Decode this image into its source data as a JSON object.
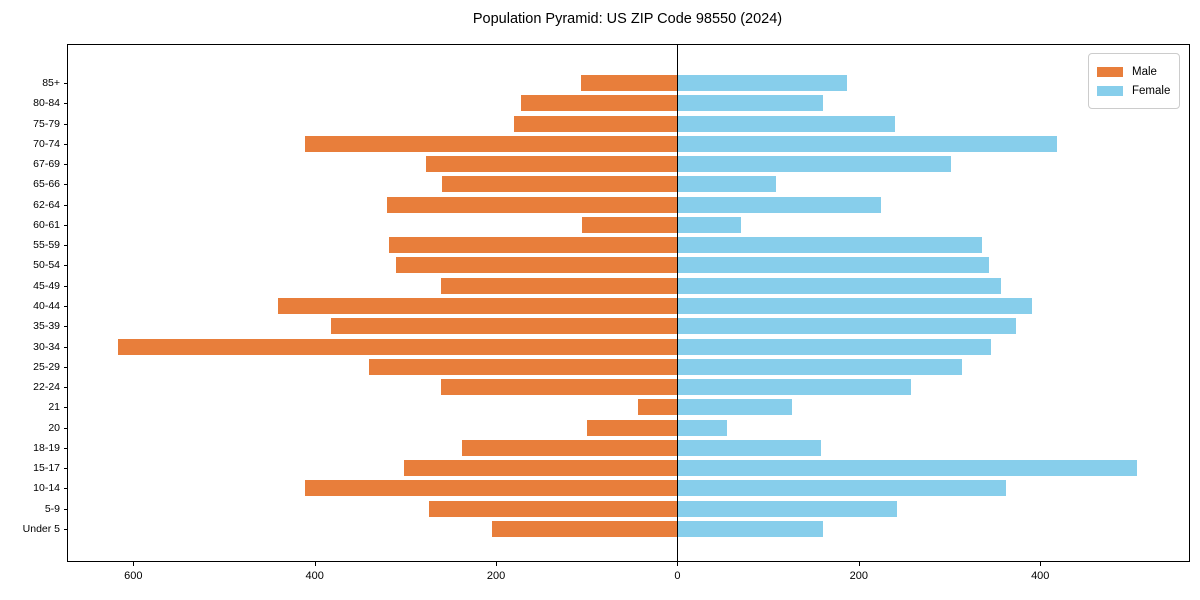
{
  "title": "Population Pyramid: US ZIP Code 98550 (2024)",
  "legend": {
    "male_label": "Male",
    "female_label": "Female",
    "position": "upper right"
  },
  "colors": {
    "male": "#e87e3b",
    "female": "#87ceeb",
    "axis": "#000000",
    "background": "#ffffff",
    "legend_border": "#cccccc"
  },
  "chart_data": {
    "type": "bar",
    "subtype": "population-pyramid",
    "orientation": "horizontal",
    "title": "Population Pyramid: US ZIP Code 98550 (2024)",
    "xlabel": "",
    "ylabel": "",
    "grid": false,
    "legend_position": "upper right",
    "categories": [
      "85+",
      "80-84",
      "75-79",
      "70-74",
      "67-69",
      "65-66",
      "62-64",
      "60-61",
      "55-59",
      "50-54",
      "45-49",
      "40-44",
      "35-39",
      "30-34",
      "25-29",
      "22-24",
      "21",
      "20",
      "18-19",
      "15-17",
      "10-14",
      "5-9",
      "Under 5"
    ],
    "series": [
      {
        "name": "Male",
        "side": "left",
        "color": "#e87e3b",
        "values": [
          106,
          173,
          180,
          411,
          277,
          260,
          320,
          105,
          318,
          310,
          261,
          440,
          382,
          617,
          340,
          261,
          43,
          100,
          238,
          301,
          411,
          274,
          205
        ]
      },
      {
        "name": "Female",
        "side": "right",
        "color": "#87ceeb",
        "values": [
          187,
          161,
          240,
          419,
          302,
          109,
          224,
          70,
          336,
          344,
          357,
          391,
          373,
          346,
          314,
          257,
          126,
          55,
          158,
          507,
          362,
          242,
          161
        ]
      }
    ],
    "x_tick_values": [
      -600,
      -400,
      -200,
      0,
      200,
      400
    ],
    "x_tick_labels": [
      "600",
      "400",
      "200",
      "0",
      "200",
      "400"
    ],
    "xlim": [
      -672,
      564
    ]
  }
}
